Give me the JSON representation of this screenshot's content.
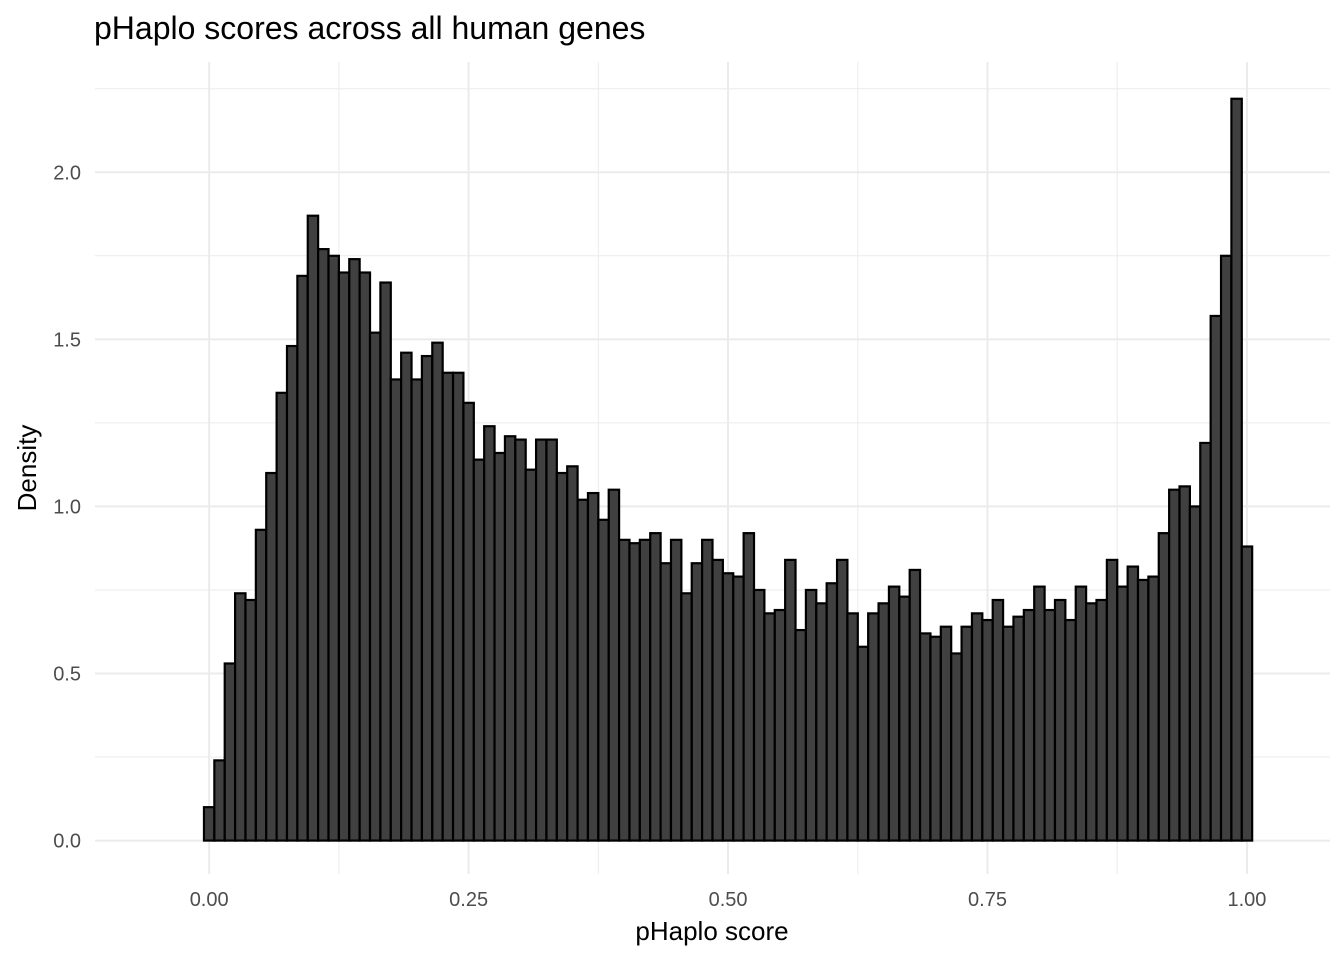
{
  "chart_data": {
    "type": "bar",
    "title": "pHaplo scores across all human genes",
    "xlabel": "pHaplo score",
    "ylabel": "Density",
    "xlim": [
      -0.11,
      1.08
    ],
    "ylim": [
      -0.1,
      2.33
    ],
    "x_ticks": [
      0.0,
      0.25,
      0.5,
      0.75,
      1.0
    ],
    "x_tick_labels": [
      "0.00",
      "0.25",
      "0.50",
      "0.75",
      "1.00"
    ],
    "y_ticks": [
      0.0,
      0.5,
      1.0,
      1.5,
      2.0
    ],
    "y_tick_labels": [
      "0.0",
      "0.5",
      "1.0",
      "1.5",
      "2.0"
    ],
    "grid": true,
    "bin_start": -0.005,
    "bin_width": 0.01,
    "values": [
      0.1,
      0.24,
      0.53,
      0.74,
      0.72,
      0.93,
      1.1,
      1.34,
      1.48,
      1.69,
      1.87,
      1.77,
      1.75,
      1.7,
      1.74,
      1.7,
      1.52,
      1.67,
      1.38,
      1.46,
      1.38,
      1.45,
      1.49,
      1.4,
      1.4,
      1.31,
      1.14,
      1.24,
      1.16,
      1.21,
      1.2,
      1.11,
      1.2,
      1.2,
      1.1,
      1.12,
      1.02,
      1.04,
      0.96,
      1.05,
      0.9,
      0.89,
      0.9,
      0.92,
      0.83,
      0.9,
      0.74,
      0.83,
      0.9,
      0.84,
      0.8,
      0.79,
      0.92,
      0.75,
      0.68,
      0.69,
      0.84,
      0.63,
      0.75,
      0.71,
      0.77,
      0.84,
      0.68,
      0.58,
      0.68,
      0.71,
      0.76,
      0.73,
      0.81,
      0.62,
      0.61,
      0.64,
      0.56,
      0.64,
      0.68,
      0.66,
      0.72,
      0.64,
      0.67,
      0.69,
      0.76,
      0.69,
      0.72,
      0.66,
      0.76,
      0.71,
      0.72,
      0.84,
      0.76,
      0.82,
      0.78,
      0.79,
      0.92,
      1.05,
      1.06,
      1.0,
      1.19,
      1.57,
      1.75,
      2.22,
      0.88
    ],
    "colors": {
      "bar_fill": "#404040",
      "bar_stroke": "#000000",
      "grid": "#ebebeb"
    }
  }
}
